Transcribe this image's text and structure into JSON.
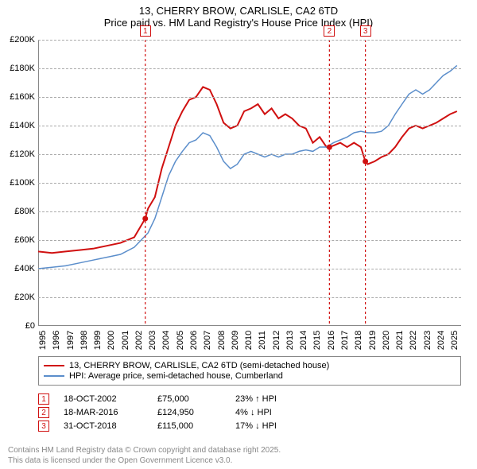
{
  "title": {
    "line1": "13, CHERRY BROW, CARLISLE, CA2 6TD",
    "line2": "Price paid vs. HM Land Registry's House Price Index (HPI)"
  },
  "chart": {
    "type": "line",
    "background_color": "#ffffff",
    "grid_color": "#aaaaaa",
    "axis_color": "#888888",
    "x": {
      "min": 1995,
      "max": 2025.8,
      "ticks": [
        1995,
        1996,
        1997,
        1998,
        1999,
        2000,
        2001,
        2002,
        2003,
        2004,
        2005,
        2006,
        2007,
        2008,
        2009,
        2010,
        2011,
        2012,
        2013,
        2014,
        2015,
        2016,
        2017,
        2018,
        2019,
        2020,
        2021,
        2022,
        2023,
        2024,
        2025
      ]
    },
    "y": {
      "min": 0,
      "max": 200000,
      "ticks": [
        0,
        20000,
        40000,
        60000,
        80000,
        100000,
        120000,
        140000,
        160000,
        180000,
        200000
      ],
      "tick_labels": [
        "£0",
        "£20K",
        "£40K",
        "£60K",
        "£80K",
        "£100K",
        "£120K",
        "£140K",
        "£160K",
        "£180K",
        "£200K"
      ]
    },
    "series": [
      {
        "name": "property",
        "label": "13, CHERRY BROW, CARLISLE, CA2 6TD (semi-detached house)",
        "color": "#d01010",
        "width": 2,
        "data": [
          [
            1995,
            52000
          ],
          [
            1996,
            51000
          ],
          [
            1997,
            52000
          ],
          [
            1998,
            53000
          ],
          [
            1999,
            54000
          ],
          [
            2000,
            56000
          ],
          [
            2001,
            58000
          ],
          [
            2002,
            62000
          ],
          [
            2002.8,
            75000
          ],
          [
            2003,
            82000
          ],
          [
            2003.5,
            90000
          ],
          [
            2004,
            110000
          ],
          [
            2004.5,
            125000
          ],
          [
            2005,
            140000
          ],
          [
            2005.5,
            150000
          ],
          [
            2006,
            158000
          ],
          [
            2006.5,
            160000
          ],
          [
            2007,
            167000
          ],
          [
            2007.5,
            165000
          ],
          [
            2008,
            155000
          ],
          [
            2008.5,
            142000
          ],
          [
            2009,
            138000
          ],
          [
            2009.5,
            140000
          ],
          [
            2010,
            150000
          ],
          [
            2010.5,
            152000
          ],
          [
            2011,
            155000
          ],
          [
            2011.5,
            148000
          ],
          [
            2012,
            152000
          ],
          [
            2012.5,
            145000
          ],
          [
            2013,
            148000
          ],
          [
            2013.5,
            145000
          ],
          [
            2014,
            140000
          ],
          [
            2014.5,
            138000
          ],
          [
            2015,
            128000
          ],
          [
            2015.5,
            132000
          ],
          [
            2016,
            125000
          ],
          [
            2016.2,
            124950
          ],
          [
            2016.5,
            126000
          ],
          [
            2017,
            128000
          ],
          [
            2017.5,
            125000
          ],
          [
            2018,
            128000
          ],
          [
            2018.5,
            125000
          ],
          [
            2018.83,
            115000
          ],
          [
            2019,
            113000
          ],
          [
            2019.5,
            115000
          ],
          [
            2020,
            118000
          ],
          [
            2020.5,
            120000
          ],
          [
            2021,
            125000
          ],
          [
            2021.5,
            132000
          ],
          [
            2022,
            138000
          ],
          [
            2022.5,
            140000
          ],
          [
            2023,
            138000
          ],
          [
            2023.5,
            140000
          ],
          [
            2024,
            142000
          ],
          [
            2024.5,
            145000
          ],
          [
            2025,
            148000
          ],
          [
            2025.5,
            150000
          ]
        ]
      },
      {
        "name": "hpi",
        "label": "HPI: Average price, semi-detached house, Cumberland",
        "color": "#5b8ecb",
        "width": 1.5,
        "data": [
          [
            1995,
            40000
          ],
          [
            1996,
            41000
          ],
          [
            1997,
            42000
          ],
          [
            1998,
            44000
          ],
          [
            1999,
            46000
          ],
          [
            2000,
            48000
          ],
          [
            2001,
            50000
          ],
          [
            2002,
            55000
          ],
          [
            2003,
            65000
          ],
          [
            2003.5,
            75000
          ],
          [
            2004,
            90000
          ],
          [
            2004.5,
            105000
          ],
          [
            2005,
            115000
          ],
          [
            2005.5,
            122000
          ],
          [
            2006,
            128000
          ],
          [
            2006.5,
            130000
          ],
          [
            2007,
            135000
          ],
          [
            2007.5,
            133000
          ],
          [
            2008,
            125000
          ],
          [
            2008.5,
            115000
          ],
          [
            2009,
            110000
          ],
          [
            2009.5,
            113000
          ],
          [
            2010,
            120000
          ],
          [
            2010.5,
            122000
          ],
          [
            2011,
            120000
          ],
          [
            2011.5,
            118000
          ],
          [
            2012,
            120000
          ],
          [
            2012.5,
            118000
          ],
          [
            2013,
            120000
          ],
          [
            2013.5,
            120000
          ],
          [
            2014,
            122000
          ],
          [
            2014.5,
            123000
          ],
          [
            2015,
            122000
          ],
          [
            2015.5,
            125000
          ],
          [
            2016,
            125000
          ],
          [
            2016.5,
            128000
          ],
          [
            2017,
            130000
          ],
          [
            2017.5,
            132000
          ],
          [
            2018,
            135000
          ],
          [
            2018.5,
            136000
          ],
          [
            2019,
            135000
          ],
          [
            2019.5,
            135000
          ],
          [
            2020,
            136000
          ],
          [
            2020.5,
            140000
          ],
          [
            2021,
            148000
          ],
          [
            2021.5,
            155000
          ],
          [
            2022,
            162000
          ],
          [
            2022.5,
            165000
          ],
          [
            2023,
            162000
          ],
          [
            2023.5,
            165000
          ],
          [
            2024,
            170000
          ],
          [
            2024.5,
            175000
          ],
          [
            2025,
            178000
          ],
          [
            2025.5,
            182000
          ]
        ]
      }
    ],
    "events": [
      {
        "n": "1",
        "x": 2002.8,
        "date": "18-OCT-2002",
        "price": "£75,000",
        "change": "23% ↑ HPI",
        "color": "#d01010",
        "point_y": 75000
      },
      {
        "n": "2",
        "x": 2016.21,
        "date": "18-MAR-2016",
        "price": "£124,950",
        "change": "4% ↓ HPI",
        "color": "#d01010",
        "point_y": 124950
      },
      {
        "n": "3",
        "x": 2018.83,
        "date": "31-OCT-2018",
        "price": "£115,000",
        "change": "17% ↓ HPI",
        "color": "#d01010",
        "point_y": 115000
      }
    ]
  },
  "footer": {
    "line1": "Contains HM Land Registry data © Crown copyright and database right 2025.",
    "line2": "This data is licensed under the Open Government Licence v3.0."
  }
}
